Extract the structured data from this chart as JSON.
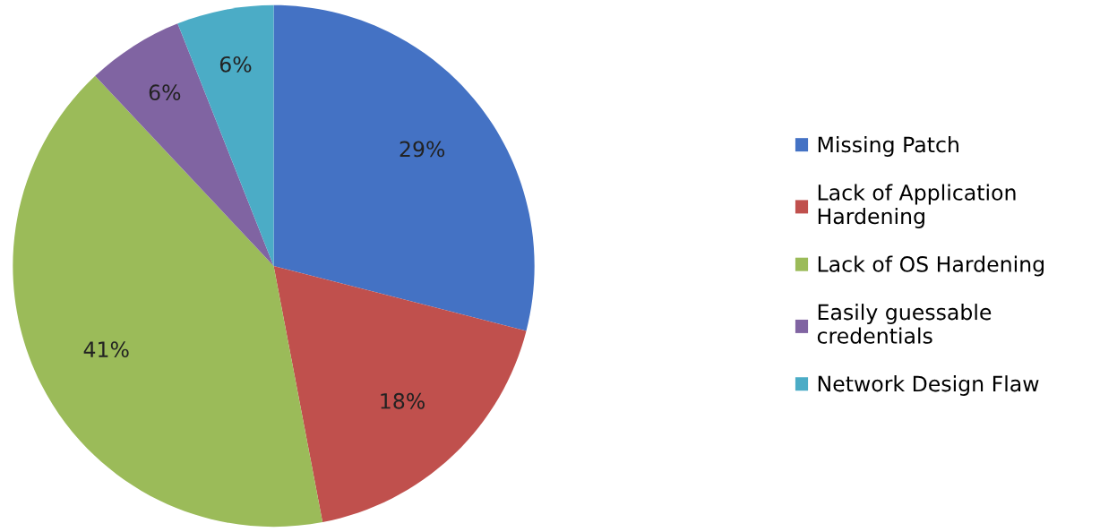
{
  "chart_data": {
    "type": "pie",
    "categories": [
      "Missing Patch",
      "Lack of Application\nHardening",
      "Lack of OS Hardening",
      "Easily guessable\ncredentials",
      "Network Design Flaw"
    ],
    "values": [
      29,
      18,
      41,
      6,
      6
    ],
    "colors": [
      "#4472c4",
      "#c0504d",
      "#9bbb59",
      "#8064a2",
      "#4bacc6"
    ],
    "value_labels": [
      "29%",
      "18%",
      "41%",
      "6%",
      "6%"
    ],
    "legend": "right"
  }
}
